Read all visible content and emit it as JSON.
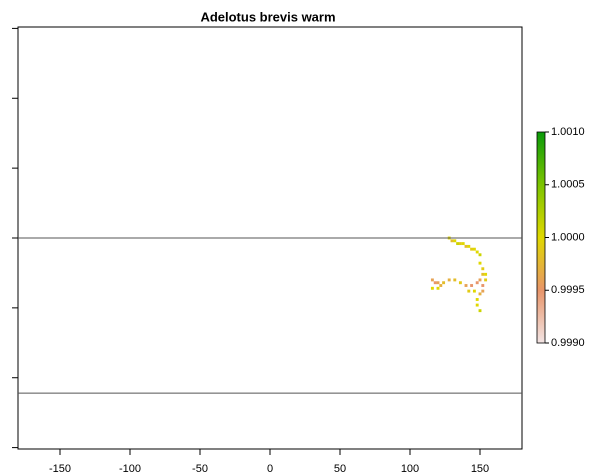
{
  "chart_data": {
    "type": "raster",
    "title": "Adelotus brevis warm",
    "xlim": [
      -180,
      180
    ],
    "ylim": [
      -151,
      151
    ],
    "xticks": [
      -150,
      -100,
      -50,
      0,
      50,
      100,
      150
    ],
    "yticks": [
      -150,
      -100,
      -50,
      0,
      50,
      100,
      150
    ],
    "hlines": [
      0,
      -111
    ],
    "cells": {
      "x": [
        128,
        130,
        132,
        134,
        136,
        138,
        140,
        142,
        144,
        146,
        148,
        150,
        150,
        152,
        152,
        116,
        118,
        120,
        122,
        116,
        120,
        124,
        128,
        132,
        136,
        140,
        144,
        148,
        150,
        152,
        152,
        150,
        146,
        142,
        148,
        148,
        150,
        154,
        154
      ],
      "y": [
        0,
        -2,
        -2,
        -4,
        -4,
        -4,
        -6,
        -6,
        -8,
        -8,
        -10,
        -12,
        -18,
        -22,
        -26,
        -30,
        -32,
        -32,
        -34,
        -36,
        -36,
        -32,
        -30,
        -30,
        -32,
        -34,
        -34,
        -32,
        -30,
        -34,
        -38,
        -40,
        -38,
        -38,
        -44,
        -48,
        -52,
        -30,
        -26
      ],
      "values": [
        1.0,
        0.9998,
        1.0,
        1.0001,
        0.9999,
        1.0,
        0.9998,
        1.0,
        0.9999,
        1.0,
        1.0,
        1.0001,
        1.0,
        0.9999,
        0.9998,
        0.9996,
        0.9995,
        0.9996,
        0.9997,
        1.0,
        1.0,
        0.9998,
        0.9997,
        0.9998,
        0.9999,
        0.9996,
        0.9995,
        0.9995,
        0.9996,
        0.9995,
        0.9996,
        0.9997,
        1.0,
        0.9999,
        1.0,
        1.0,
        1.0001,
        0.9999,
        1.0
      ]
    },
    "zlim": [
      0.999,
      1.001
    ],
    "zticks": [
      {
        "value": 0.999,
        "label": "0.9990"
      },
      {
        "value": 0.9995,
        "label": "0.9995"
      },
      {
        "value": 1.0,
        "label": "1.0000"
      },
      {
        "value": 1.0005,
        "label": "1.0005"
      },
      {
        "value": 1.001,
        "label": "1.0010"
      }
    ],
    "colors": [
      "#f2e4e4",
      "#e8956a",
      "#e0d800",
      "#7cc400",
      "#0a9a0a"
    ]
  }
}
